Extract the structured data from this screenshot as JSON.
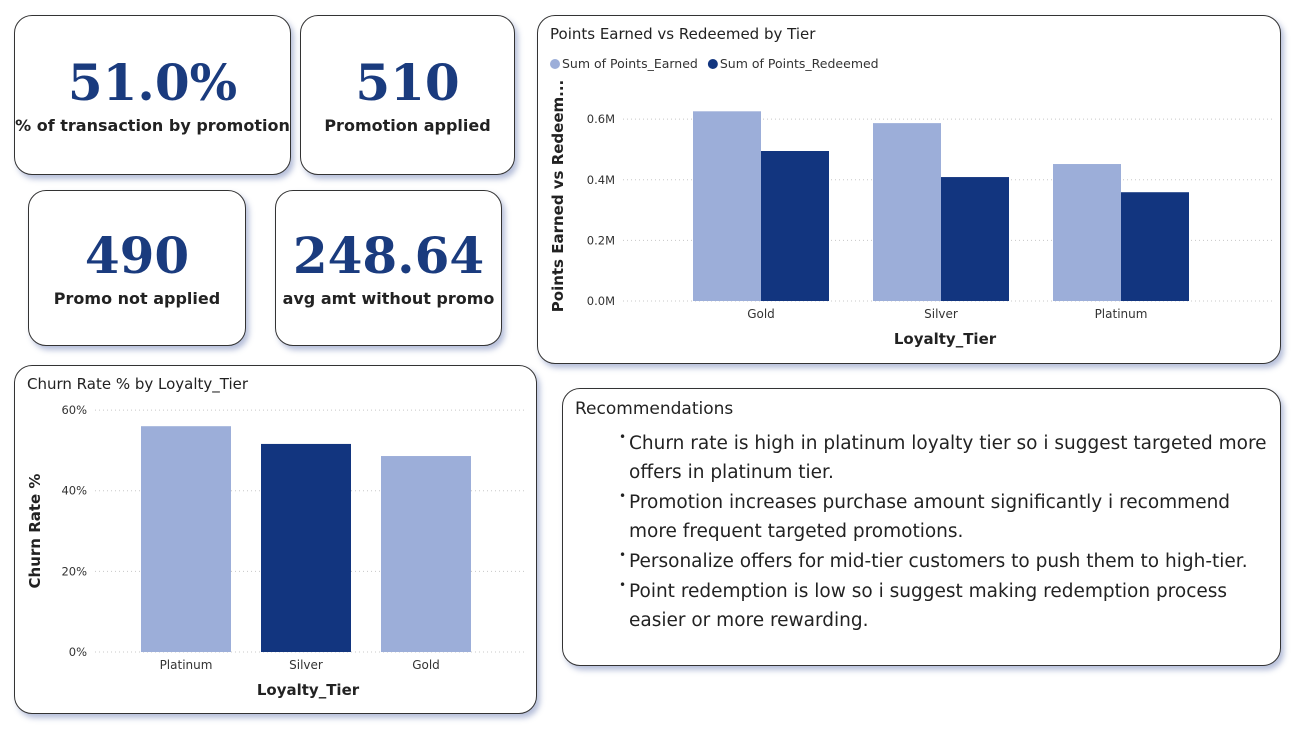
{
  "cards": [
    {
      "value": "51.0%",
      "label": "% of transaction by promotion"
    },
    {
      "value": "510",
      "label": "Promotion applied"
    },
    {
      "value": "490",
      "label": "Promo not applied"
    },
    {
      "value": "248.64",
      "label": "avg amt without promo"
    }
  ],
  "chart_data": [
    {
      "type": "bar",
      "title": "Points Earned vs Redeemed by Tier",
      "x_label": "Loyalty_Tier",
      "y_label": "Points Earned vs Redeem...",
      "categories": [
        "Gold",
        "Silver",
        "Platinum"
      ],
      "series": [
        {
          "name": "Sum of Points_Earned",
          "color": "#9caed9",
          "values": [
            626000,
            587000,
            452000
          ]
        },
        {
          "name": "Sum of Points_Redeemed",
          "color": "#12357f",
          "values": [
            495000,
            409000,
            359000
          ]
        }
      ],
      "ylim": [
        0,
        660000
      ],
      "yticks": [
        {
          "value": 0,
          "label": "0.0M"
        },
        {
          "value": 200000,
          "label": "0.2M"
        },
        {
          "value": 400000,
          "label": "0.4M"
        },
        {
          "value": 600000,
          "label": "0.6M"
        }
      ],
      "grid": true,
      "legend": "top-left"
    },
    {
      "type": "bar",
      "title": "Churn Rate % by Loyalty_Tier",
      "x_label": "Loyalty_Tier",
      "y_label": "Churn Rate %",
      "categories": [
        "Platinum",
        "Silver",
        "Gold"
      ],
      "values": [
        56.0,
        51.6,
        48.6
      ],
      "colors": [
        "#9caed9",
        "#12357f",
        "#9caed9"
      ],
      "ylim": [
        0,
        62
      ],
      "yticks": [
        {
          "value": 0,
          "label": "0%"
        },
        {
          "value": 20,
          "label": "20%"
        },
        {
          "value": 40,
          "label": "40%"
        },
        {
          "value": 60,
          "label": "60%"
        }
      ],
      "grid": true
    }
  ],
  "recommendations": {
    "title": "Recommendations",
    "items": [
      "Churn rate is high in platinum loyalty tier so i suggest targeted more offers in platinum tier.",
      "Promotion increases purchase amount significantly i recommend more frequent targeted promotions.",
      "Personalize offers for mid-tier customers to push them to high-tier.",
      "Point redemption is low so i suggest making redemption process easier or more rewarding."
    ]
  }
}
